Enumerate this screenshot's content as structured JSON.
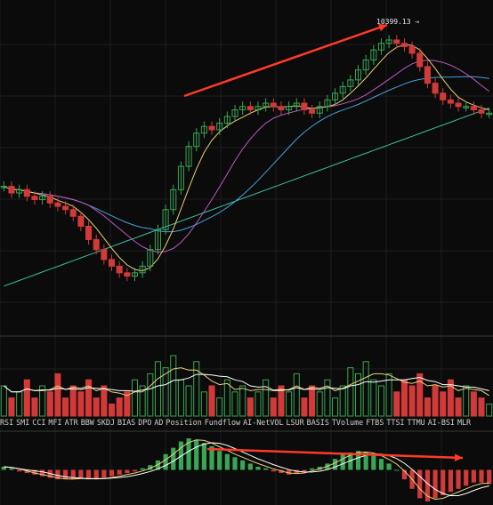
{
  "price_label": "10399.13 →",
  "indicator_tabs": [
    "RSI",
    "SMI",
    "CCI",
    "MFI",
    "ATR",
    "BBW",
    "SKDJ",
    "BIAS",
    "DPO",
    "AD",
    "Position",
    "Fundflow",
    "AI-NetVOL",
    "LSUR",
    "BASIS",
    "TVolume",
    "FTBS",
    "TTSI",
    "TTMU",
    "AI-BSI",
    "MLR"
  ],
  "colors": {
    "background": "#0b0b0b",
    "grid": "#1e1e1e",
    "up": "#3aa655",
    "down": "#d23a3a",
    "ma_yellow": "#e8d37a",
    "ma_pink": "#c05ac0",
    "ma_blue": "#4aa0d8",
    "ma_green": "#3fbf9a",
    "annotation_arrow": "#ff3a2a"
  },
  "chart_data": {
    "type": "candlestick",
    "series_closes": [
      0.62,
      0.6,
      0.61,
      0.59,
      0.58,
      0.59,
      0.57,
      0.56,
      0.55,
      0.53,
      0.5,
      0.46,
      0.43,
      0.4,
      0.38,
      0.36,
      0.35,
      0.36,
      0.38,
      0.43,
      0.49,
      0.55,
      0.61,
      0.68,
      0.74,
      0.78,
      0.8,
      0.79,
      0.81,
      0.83,
      0.85,
      0.86,
      0.85,
      0.86,
      0.87,
      0.86,
      0.85,
      0.86,
      0.87,
      0.85,
      0.84,
      0.86,
      0.88,
      0.9,
      0.92,
      0.94,
      0.97,
      1.0,
      1.03,
      1.05,
      1.06,
      1.05,
      1.04,
      1.02,
      0.98,
      0.93,
      0.9,
      0.88,
      0.87,
      0.86,
      0.86,
      0.85,
      0.84,
      0.84
    ],
    "volumes": [
      0.5,
      0.3,
      0.4,
      0.6,
      0.3,
      0.5,
      0.4,
      0.7,
      0.3,
      0.5,
      0.4,
      0.6,
      0.3,
      0.5,
      0.2,
      0.3,
      0.4,
      0.6,
      0.5,
      0.7,
      0.9,
      0.8,
      1.0,
      0.6,
      0.5,
      0.9,
      0.4,
      0.5,
      0.3,
      0.6,
      0.4,
      0.5,
      0.3,
      0.4,
      0.6,
      0.3,
      0.5,
      0.4,
      0.7,
      0.3,
      0.5,
      0.4,
      0.6,
      0.3,
      0.5,
      0.8,
      0.7,
      0.9,
      0.6,
      0.5,
      0.7,
      0.4,
      0.6,
      0.5,
      0.7,
      0.3,
      0.5,
      0.4,
      0.6,
      0.3,
      0.5,
      0.4,
      0.3,
      0.2
    ],
    "macd_hist": [
      0.1,
      0.05,
      -0.05,
      -0.1,
      -0.15,
      -0.2,
      -0.25,
      -0.3,
      -0.3,
      -0.28,
      -0.25,
      -0.3,
      -0.28,
      -0.25,
      -0.2,
      -0.15,
      -0.1,
      -0.05,
      0.05,
      0.15,
      0.3,
      0.5,
      0.7,
      0.9,
      1.0,
      0.95,
      0.85,
      0.75,
      0.6,
      0.5,
      0.4,
      0.3,
      0.2,
      0.1,
      0.05,
      -0.05,
      -0.1,
      -0.15,
      -0.1,
      -0.05,
      0.05,
      0.1,
      0.2,
      0.35,
      0.5,
      0.55,
      0.6,
      0.55,
      0.45,
      0.35,
      0.2,
      0.0,
      -0.3,
      -0.6,
      -0.9,
      -1.0,
      -0.9,
      -0.8,
      -0.7,
      -0.6,
      -0.5,
      -0.4,
      -0.4,
      -0.45
    ]
  }
}
